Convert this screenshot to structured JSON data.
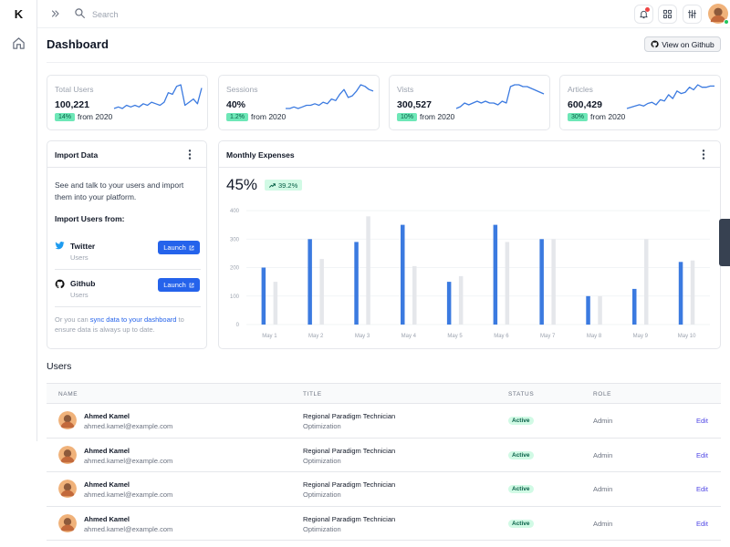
{
  "brand": {
    "logo_letter": "K"
  },
  "search": {
    "placeholder": "Search"
  },
  "header": {
    "title": "Dashboard",
    "github_label": "View on Github"
  },
  "stats": [
    {
      "label": "Total Users",
      "value": "100,221",
      "badge": "14%",
      "suffix": "from 2020",
      "trend": [
        20,
        21,
        20,
        22,
        21,
        22,
        21,
        23,
        22,
        24,
        23,
        22,
        24,
        30,
        29,
        34,
        35,
        22,
        24,
        26,
        23,
        33
      ]
    },
    {
      "label": "Sessions",
      "value": "40%",
      "badge": "1.2%",
      "suffix": "from 2020",
      "trend": [
        18,
        18,
        19,
        18,
        19,
        20,
        20,
        21,
        20,
        22,
        21,
        24,
        23,
        27,
        30,
        25,
        26,
        29,
        33,
        32,
        30,
        29
      ]
    },
    {
      "label": "Vists",
      "value": "300,527",
      "badge": "10%",
      "suffix": "from 2020",
      "trend": [
        18,
        19,
        21,
        20,
        21,
        22,
        21,
        22,
        21,
        21,
        20,
        22,
        21,
        30,
        31,
        31,
        30,
        30,
        29,
        28,
        27,
        26
      ]
    },
    {
      "label": "Articles",
      "value": "600,429",
      "badge": "30%",
      "suffix": "from 2020",
      "trend": [
        16,
        17,
        18,
        19,
        18,
        20,
        21,
        19,
        23,
        22,
        27,
        24,
        30,
        28,
        29,
        33,
        31,
        35,
        33,
        33,
        34,
        34
      ]
    }
  ],
  "import": {
    "title": "Import Data",
    "description": "See and talk to your users and import them into your platform.",
    "subtitle": "Import Users from:",
    "services": [
      {
        "name": "Twitter",
        "sub": "Users",
        "button": "Launch"
      },
      {
        "name": "Github",
        "sub": "Users",
        "button": "Launch"
      }
    ],
    "footer_pre": "Or you can",
    "footer_link": "sync data to your dashboard",
    "footer_post": "to ensure data is always up to date."
  },
  "expenses": {
    "title": "Monthly Expenses",
    "big_value": "45%",
    "badge": "39.2%"
  },
  "chart_data": {
    "type": "bar",
    "categories": [
      "May 1",
      "May 2",
      "May 3",
      "May 4",
      "May 5",
      "May 6",
      "May 7",
      "May 8",
      "May 9",
      "May 10"
    ],
    "series": [
      {
        "values": [
          200,
          300,
          290,
          350,
          150,
          350,
          300,
          100,
          125,
          220
        ],
        "color": "#3b7ae0"
      },
      {
        "values": [
          150,
          230,
          380,
          205,
          170,
          290,
          300,
          100,
          300,
          225
        ],
        "color": "#e5e7eb"
      }
    ],
    "ylim": [
      0,
      400
    ],
    "yticks": [
      0,
      100,
      200,
      300,
      400
    ],
    "grid": true
  },
  "users": {
    "title": "Users",
    "columns": [
      "NAME",
      "TITLE",
      "STATUS",
      "ROLE"
    ],
    "rows": [
      {
        "name": "Ahmed Kamel",
        "email": "ahmed.kamel@example.com",
        "title": "Regional Paradigm Technician",
        "dept": "Optimization",
        "status": "Active",
        "role": "Admin",
        "action": "Edit"
      },
      {
        "name": "Ahmed Kamel",
        "email": "ahmed.kamel@example.com",
        "title": "Regional Paradigm Technician",
        "dept": "Optimization",
        "status": "Active",
        "role": "Admin",
        "action": "Edit"
      },
      {
        "name": "Ahmed Kamel",
        "email": "ahmed.kamel@example.com",
        "title": "Regional Paradigm Technician",
        "dept": "Optimization",
        "status": "Active",
        "role": "Admin",
        "action": "Edit"
      },
      {
        "name": "Ahmed Kamel",
        "email": "ahmed.kamel@example.com",
        "title": "Regional Paradigm Technician",
        "dept": "Optimization",
        "status": "Active",
        "role": "Admin",
        "action": "Edit"
      }
    ]
  },
  "icons": {
    "rail": "home-icon",
    "topbar": [
      "expand-icon",
      "search-icon",
      "bell-icon",
      "grid-icon",
      "sliders-icon",
      "avatar"
    ]
  }
}
